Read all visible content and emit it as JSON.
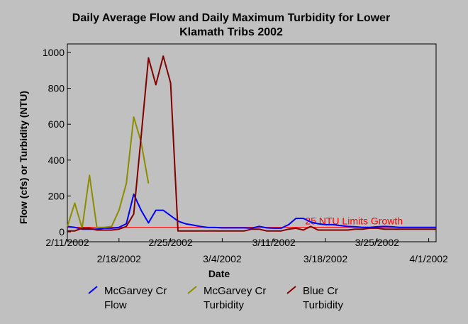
{
  "chart_data": {
    "type": "line",
    "title": [
      "Daily Average Flow and Daily Maximum Turbidity for Lower",
      "Klamath Tribs 2002"
    ],
    "xlabel": "Date",
    "ylabel": "Flow (cfs) or Turbidity (NTU)",
    "xlim": [
      0,
      50
    ],
    "ylim": [
      0,
      1000
    ],
    "x_ticks_upper": [
      {
        "x": 0,
        "label": "2/11/2002"
      },
      {
        "x": 14,
        "label": "2/25/2002"
      },
      {
        "x": 28,
        "label": "3/11/2002"
      },
      {
        "x": 42,
        "label": "3/25/2002"
      }
    ],
    "x_ticks_lower": [
      {
        "x": 7,
        "label": "2/18/2002"
      },
      {
        "x": 21,
        "label": "3/4/2002"
      },
      {
        "x": 35,
        "label": "3/18/2002"
      },
      {
        "x": 49,
        "label": "4/1/2002"
      }
    ],
    "y_ticks": [
      0,
      200,
      400,
      600,
      800,
      1000
    ],
    "x_unit": "days since 2/11/2002",
    "series": [
      {
        "name": "McGarvey Cr Flow",
        "color": "#0000ff",
        "x": [
          0,
          1,
          2,
          3,
          4,
          5,
          6,
          7,
          8,
          9,
          10,
          11,
          12,
          13,
          14,
          15,
          16,
          17,
          18,
          19,
          20,
          21,
          22,
          23,
          24,
          25,
          26,
          27,
          28,
          29,
          30,
          31,
          32,
          33,
          34,
          35,
          36,
          37,
          38,
          39,
          40,
          41,
          42,
          43,
          44,
          45,
          46,
          47,
          48,
          49,
          50
        ],
        "y": [
          30,
          25,
          15,
          15,
          15,
          20,
          20,
          25,
          45,
          210,
          120,
          50,
          120,
          120,
          90,
          60,
          45,
          38,
          30,
          25,
          24,
          22,
          22,
          22,
          22,
          20,
          30,
          22,
          20,
          20,
          40,
          75,
          75,
          55,
          45,
          40,
          40,
          35,
          30,
          28,
          25,
          25,
          28,
          30,
          28,
          25,
          25,
          25,
          25,
          25,
          25
        ]
      },
      {
        "name": "McGarvey Cr Turbidity",
        "color": "#8c8c00",
        "x": [
          0,
          1,
          2,
          3,
          4,
          5,
          6,
          7,
          8,
          9,
          10,
          11
        ],
        "y": [
          30,
          160,
          20,
          315,
          25,
          25,
          30,
          120,
          270,
          640,
          500,
          270
        ]
      },
      {
        "name": "Blue Cr Turbidity",
        "color": "#800000",
        "x": [
          0,
          1,
          2,
          3,
          4,
          5,
          6,
          7,
          8,
          9,
          10,
          11,
          12,
          13,
          14,
          15,
          16,
          17,
          18,
          19,
          20,
          21,
          22,
          23,
          24,
          25,
          26,
          27,
          28,
          29,
          30,
          31,
          32,
          33,
          34,
          35,
          36,
          37,
          38,
          39,
          40,
          41,
          42,
          43,
          44,
          45,
          46,
          47,
          48,
          49,
          50
        ],
        "y": [
          5,
          5,
          20,
          20,
          10,
          10,
          10,
          15,
          30,
          100,
          530,
          970,
          820,
          980,
          830,
          5,
          5,
          5,
          5,
          5,
          5,
          5,
          5,
          5,
          5,
          15,
          15,
          5,
          5,
          5,
          15,
          20,
          10,
          30,
          10,
          10,
          10,
          10,
          10,
          15,
          15,
          20,
          20,
          15,
          15,
          15,
          15,
          15,
          15,
          15,
          15
        ]
      }
    ],
    "reference_line": {
      "y": 25,
      "label": "25 NTU Limits Growth",
      "color": "#ff0000"
    },
    "legend": [
      {
        "line1": "McGarvey Cr",
        "line2": "Flow",
        "color": "#0000ff"
      },
      {
        "line1": "McGarvey Cr",
        "line2": "Turbidity",
        "color": "#8c8c00"
      },
      {
        "line1": "Blue Cr",
        "line2": "Turbidity",
        "color": "#800000"
      }
    ],
    "legend_position": "bottom",
    "grid": false
  }
}
